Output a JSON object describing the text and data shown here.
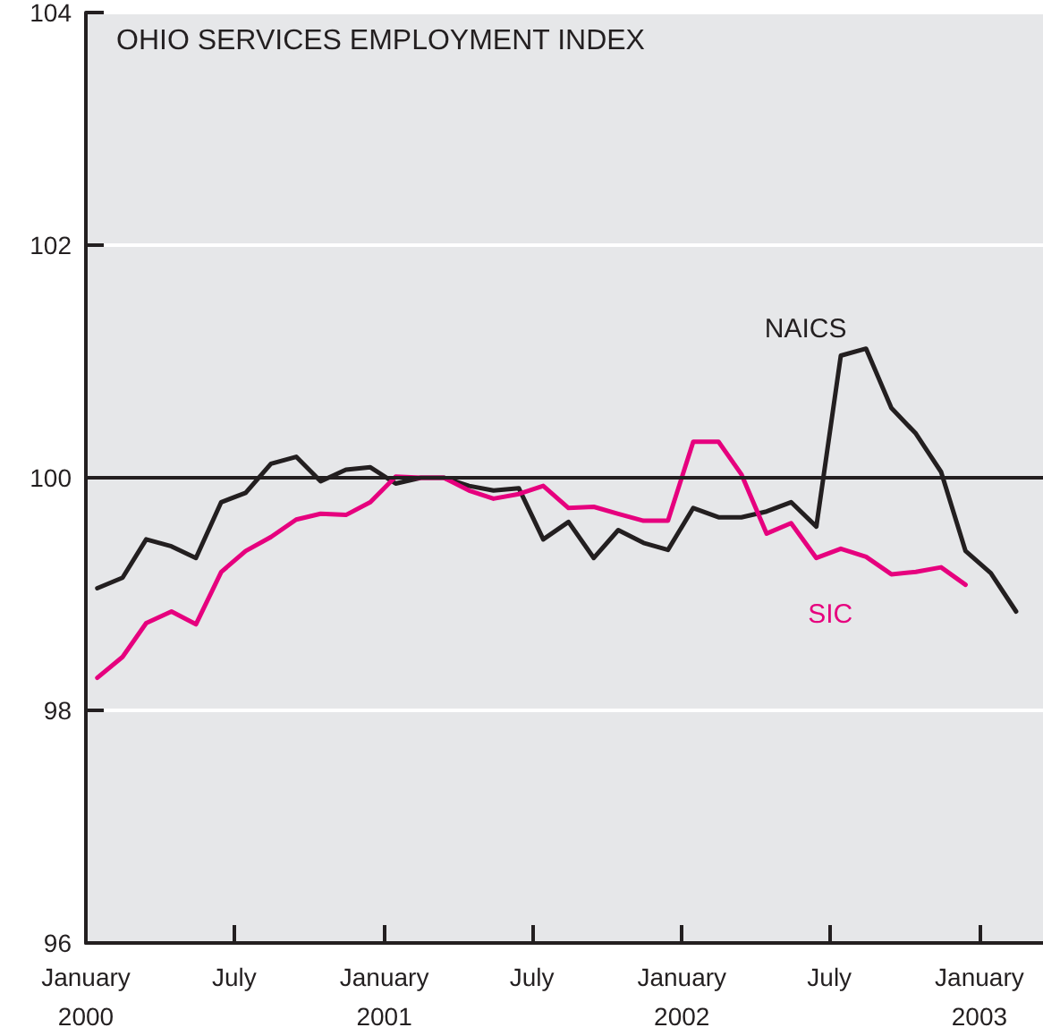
{
  "chart_data": {
    "type": "line",
    "title": "OHIO SERVICES EMPLOYMENT INDEX",
    "x": [
      "2000-01-15",
      "2000-02-15",
      "2000-03-15",
      "2000-04-15",
      "2000-05-15",
      "2000-06-15",
      "2000-07-15",
      "2000-08-15",
      "2000-09-15",
      "2000-10-15",
      "2000-11-15",
      "2000-12-15",
      "2001-01-15",
      "2001-02-15",
      "2001-03-15",
      "2001-04-15",
      "2001-05-15",
      "2001-06-15",
      "2001-07-15",
      "2001-08-15",
      "2001-09-15",
      "2001-10-15",
      "2001-11-15",
      "2001-12-15",
      "2002-01-15",
      "2002-02-15",
      "2002-03-15",
      "2002-04-15",
      "2002-05-15",
      "2002-06-15",
      "2002-07-15",
      "2002-08-15",
      "2002-09-15",
      "2002-10-15",
      "2002-11-15",
      "2002-12-15",
      "2003-01-15",
      "2003-02-15"
    ],
    "series": [
      {
        "name": "NAICS",
        "color": "#231f20",
        "values": [
          99.05,
          99.14,
          99.47,
          99.41,
          99.31,
          99.79,
          99.87,
          100.12,
          100.18,
          99.97,
          100.07,
          100.09,
          99.95,
          100.0,
          100.0,
          99.93,
          99.89,
          99.91,
          99.47,
          99.62,
          99.31,
          99.55,
          99.44,
          99.38,
          99.74,
          99.66,
          99.66,
          99.71,
          99.79,
          99.58,
          101.05,
          101.11,
          100.6,
          100.38,
          100.05,
          99.37,
          99.18,
          98.85
        ]
      },
      {
        "name": "SIC",
        "color": "#e6007e",
        "values": [
          98.28,
          98.46,
          98.75,
          98.85,
          98.74,
          99.19,
          99.37,
          99.49,
          99.64,
          99.69,
          99.68,
          99.79,
          100.01,
          100.0,
          100.0,
          99.89,
          99.82,
          99.86,
          99.93,
          99.74,
          99.75,
          99.69,
          99.63,
          99.63,
          100.31,
          100.31,
          100.03,
          99.52,
          99.61,
          99.31,
          99.39,
          99.32,
          99.17,
          99.19,
          99.23,
          99.08,
          null,
          null
        ]
      }
    ],
    "xlim": [
      "2000-01-01",
      "2003-03-20"
    ],
    "xticks": [
      {
        "value": "2000-01-01",
        "label": "January\n2000"
      },
      {
        "value": "2000-07-01",
        "label": "July"
      },
      {
        "value": "2001-01-01",
        "label": "January\n2001"
      },
      {
        "value": "2001-07-01",
        "label": "July"
      },
      {
        "value": "2002-01-01",
        "label": "January\n2002"
      },
      {
        "value": "2002-07-01",
        "label": "July"
      },
      {
        "value": "2003-01-01",
        "label": "January\n2003"
      }
    ],
    "ylim": [
      96,
      104
    ],
    "yticks": [
      96,
      98,
      100,
      102,
      104
    ],
    "ref_lines": [
      {
        "axis": "y",
        "value": 100,
        "color": "#231f20"
      }
    ],
    "grid": "y",
    "marker": "none",
    "line_style": "solid"
  }
}
